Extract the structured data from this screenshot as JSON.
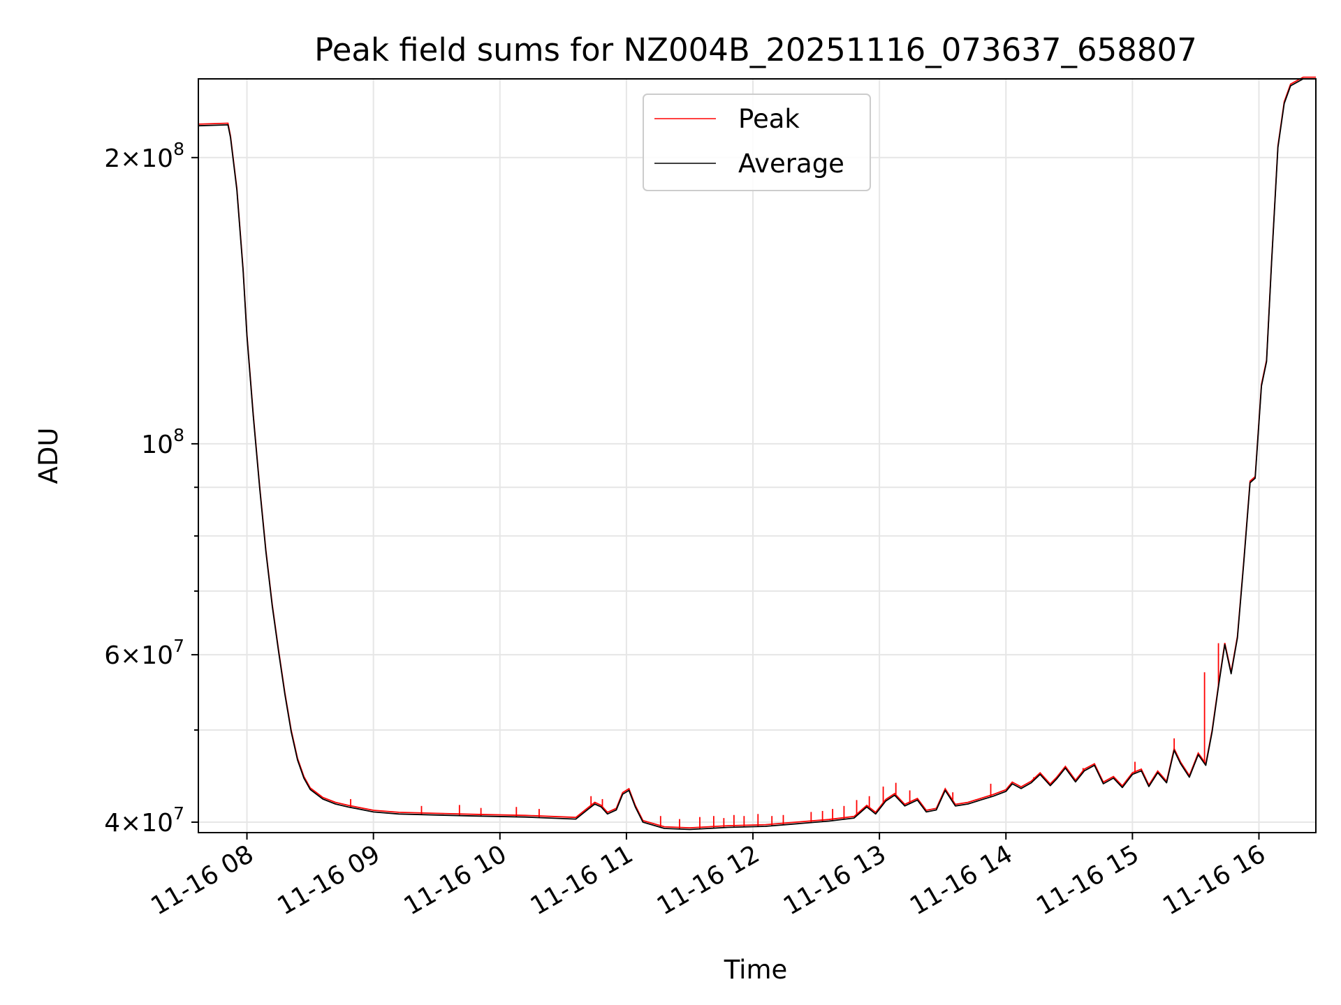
{
  "chart_data": {
    "type": "line",
    "title": "Peak field sums for NZ004B_20251116_073637_658807",
    "xlabel": "Time",
    "ylabel": "ADU",
    "yscale": "log",
    "ylim": [
      39000000,
      242000000
    ],
    "xlim": [
      7.616,
      16.45
    ],
    "grid": true,
    "legend_position": "upper-center",
    "x_ticks": [
      {
        "value": 8,
        "label": "11-16 08"
      },
      {
        "value": 9,
        "label": "11-16 09"
      },
      {
        "value": 10,
        "label": "11-16 10"
      },
      {
        "value": 11,
        "label": "11-16 11"
      },
      {
        "value": 12,
        "label": "11-16 12"
      },
      {
        "value": 13,
        "label": "11-16 13"
      },
      {
        "value": 14,
        "label": "11-16 14"
      },
      {
        "value": 15,
        "label": "11-16 15"
      },
      {
        "value": 16,
        "label": "11-16 16"
      }
    ],
    "y_major_ticks": [
      {
        "value": 40000000,
        "mantissa": "4",
        "exponent": "7"
      },
      {
        "value": 60000000,
        "mantissa": "6",
        "exponent": "7"
      },
      {
        "value": 100000000,
        "mantissa": "",
        "exponent": "8"
      },
      {
        "value": 200000000,
        "mantissa": "2",
        "exponent": "8"
      }
    ],
    "y_minor_gridlines": [
      50000000,
      70000000,
      80000000,
      90000000
    ],
    "series": [
      {
        "name": "Peak",
        "color": "#ff0000",
        "spikes": [
          {
            "x": 8.82,
            "y": 42300000
          },
          {
            "x": 9.38,
            "y": 41600000
          },
          {
            "x": 9.68,
            "y": 41700000
          },
          {
            "x": 9.85,
            "y": 41400000
          },
          {
            "x": 10.13,
            "y": 41500000
          },
          {
            "x": 10.31,
            "y": 41300000
          },
          {
            "x": 10.72,
            "y": 42600000
          },
          {
            "x": 10.81,
            "y": 42300000
          },
          {
            "x": 11.27,
            "y": 40600000
          },
          {
            "x": 11.42,
            "y": 40300000
          },
          {
            "x": 11.58,
            "y": 40500000
          },
          {
            "x": 11.69,
            "y": 40600000
          },
          {
            "x": 11.77,
            "y": 40400000
          },
          {
            "x": 11.85,
            "y": 40700000
          },
          {
            "x": 11.93,
            "y": 40600000
          },
          {
            "x": 12.04,
            "y": 40800000
          },
          {
            "x": 12.15,
            "y": 40600000
          },
          {
            "x": 12.24,
            "y": 40700000
          },
          {
            "x": 12.46,
            "y": 41000000
          },
          {
            "x": 12.55,
            "y": 41100000
          },
          {
            "x": 12.63,
            "y": 41300000
          },
          {
            "x": 12.72,
            "y": 41600000
          },
          {
            "x": 12.82,
            "y": 42200000
          },
          {
            "x": 12.92,
            "y": 42600000
          },
          {
            "x": 13.03,
            "y": 43600000
          },
          {
            "x": 13.13,
            "y": 44000000
          },
          {
            "x": 13.24,
            "y": 43200000
          },
          {
            "x": 13.58,
            "y": 43000000
          },
          {
            "x": 13.88,
            "y": 43900000
          },
          {
            "x": 14.22,
            "y": 44600000
          },
          {
            "x": 14.61,
            "y": 45600000
          },
          {
            "x": 15.02,
            "y": 46300000
          },
          {
            "x": 15.33,
            "y": 49000000
          },
          {
            "x": 15.57,
            "y": 57500000
          },
          {
            "x": 15.68,
            "y": 61700000
          }
        ]
      },
      {
        "name": "Average",
        "color": "#000000",
        "points": [
          [
            7.616,
            216000000
          ],
          [
            7.85,
            216500000
          ],
          [
            7.87,
            210000000
          ],
          [
            7.92,
            185000000
          ],
          [
            7.97,
            152000000
          ],
          [
            8.0,
            130000000
          ],
          [
            8.05,
            107000000
          ],
          [
            8.1,
            90000000
          ],
          [
            8.15,
            77000000
          ],
          [
            8.2,
            67500000
          ],
          [
            8.25,
            60500000
          ],
          [
            8.3,
            54500000
          ],
          [
            8.35,
            49800000
          ],
          [
            8.4,
            46500000
          ],
          [
            8.45,
            44500000
          ],
          [
            8.5,
            43300000
          ],
          [
            8.6,
            42300000
          ],
          [
            8.7,
            41800000
          ],
          [
            8.8,
            41500000
          ],
          [
            9.0,
            41000000
          ],
          [
            9.2,
            40800000
          ],
          [
            9.5,
            40700000
          ],
          [
            9.8,
            40600000
          ],
          [
            10.2,
            40500000
          ],
          [
            10.6,
            40300000
          ],
          [
            10.7,
            41300000
          ],
          [
            10.75,
            41800000
          ],
          [
            10.8,
            41500000
          ],
          [
            10.85,
            40800000
          ],
          [
            10.92,
            41200000
          ],
          [
            10.97,
            42800000
          ],
          [
            11.02,
            43200000
          ],
          [
            11.07,
            41500000
          ],
          [
            11.13,
            40000000
          ],
          [
            11.3,
            39400000
          ],
          [
            11.5,
            39300000
          ],
          [
            11.8,
            39500000
          ],
          [
            12.1,
            39600000
          ],
          [
            12.4,
            39900000
          ],
          [
            12.6,
            40100000
          ],
          [
            12.8,
            40400000
          ],
          [
            12.9,
            41500000
          ],
          [
            12.97,
            40800000
          ],
          [
            13.05,
            42100000
          ],
          [
            13.12,
            42700000
          ],
          [
            13.2,
            41600000
          ],
          [
            13.3,
            42200000
          ],
          [
            13.37,
            41000000
          ],
          [
            13.45,
            41200000
          ],
          [
            13.52,
            43200000
          ],
          [
            13.6,
            41600000
          ],
          [
            13.7,
            41800000
          ],
          [
            13.8,
            42200000
          ],
          [
            13.9,
            42600000
          ],
          [
            14.0,
            43100000
          ],
          [
            14.05,
            43900000
          ],
          [
            14.12,
            43400000
          ],
          [
            14.2,
            44000000
          ],
          [
            14.27,
            44900000
          ],
          [
            14.35,
            43700000
          ],
          [
            14.4,
            44400000
          ],
          [
            14.47,
            45600000
          ],
          [
            14.55,
            44100000
          ],
          [
            14.62,
            45300000
          ],
          [
            14.7,
            45900000
          ],
          [
            14.77,
            43900000
          ],
          [
            14.85,
            44500000
          ],
          [
            14.92,
            43500000
          ],
          [
            15.0,
            44900000
          ],
          [
            15.07,
            45300000
          ],
          [
            15.13,
            43600000
          ],
          [
            15.2,
            45100000
          ],
          [
            15.27,
            44000000
          ],
          [
            15.33,
            47600000
          ],
          [
            15.38,
            46100000
          ],
          [
            15.45,
            44600000
          ],
          [
            15.52,
            47100000
          ],
          [
            15.58,
            45900000
          ],
          [
            15.63,
            49800000
          ],
          [
            15.68,
            55500000
          ],
          [
            15.73,
            61500000
          ],
          [
            15.78,
            57300000
          ],
          [
            15.83,
            62500000
          ],
          [
            15.88,
            75000000
          ],
          [
            15.93,
            91000000
          ],
          [
            15.97,
            92000000
          ],
          [
            16.02,
            115000000
          ],
          [
            16.06,
            122000000
          ],
          [
            16.1,
            155000000
          ],
          [
            16.15,
            205000000
          ],
          [
            16.2,
            228000000
          ],
          [
            16.25,
            238000000
          ],
          [
            16.35,
            242000000
          ],
          [
            16.45,
            242000000
          ]
        ]
      }
    ]
  }
}
